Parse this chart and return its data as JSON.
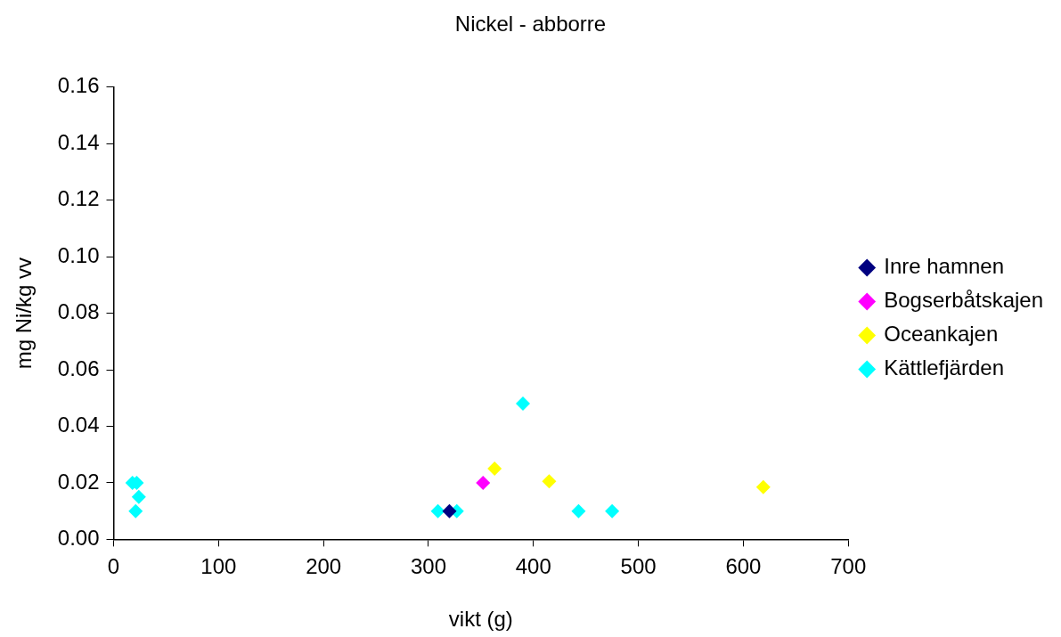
{
  "chart_data": {
    "type": "scatter",
    "title": "Nickel - abborre",
    "xlabel": "vikt (g)",
    "ylabel": "mg Ni/kg vv",
    "xlim": [
      0,
      700
    ],
    "xticks": [
      0,
      100,
      200,
      300,
      400,
      500,
      600,
      700
    ],
    "ylim": [
      0,
      0.16
    ],
    "yticks": [
      {
        "value": 0,
        "label": "0.00"
      },
      {
        "value": 0.02,
        "label": "0.02"
      },
      {
        "value": 0.04,
        "label": "0.04"
      },
      {
        "value": 0.06,
        "label": "0.06"
      },
      {
        "value": 0.08,
        "label": "0.08"
      },
      {
        "value": 0.1,
        "label": "0.10"
      },
      {
        "value": 0.12,
        "label": "0.12"
      },
      {
        "value": 0.14,
        "label": "0.14"
      },
      {
        "value": 0.16,
        "label": "0.16"
      }
    ],
    "grid": false,
    "legend": "right",
    "marker": "diamond",
    "series": [
      {
        "name": "Inre hamnen",
        "color": "#000080",
        "x": [
          320
        ],
        "values": [
          0.01
        ]
      },
      {
        "name": "Bogserbåtskajen",
        "color": "#ff00ff",
        "x": [
          352
        ],
        "values": [
          0.02
        ]
      },
      {
        "name": "Oceankajen",
        "color": "#ffff00",
        "x": [
          363,
          415,
          619
        ],
        "values": [
          0.025,
          0.0205,
          0.0185
        ]
      },
      {
        "name": "Kättlefjärden",
        "color": "#00ffff",
        "x": [
          18,
          22,
          24,
          21,
          309,
          327,
          390,
          443,
          475
        ],
        "values": [
          0.02,
          0.02,
          0.015,
          0.01,
          0.01,
          0.01,
          0.048,
          0.01,
          0.01
        ]
      }
    ]
  }
}
